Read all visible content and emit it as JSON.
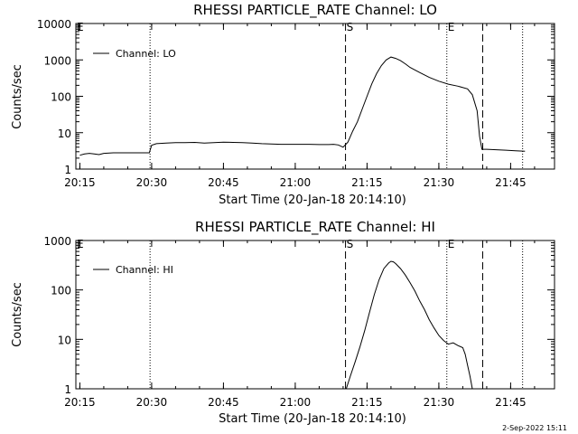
{
  "footer_date": "2-Sep-2022 15:11",
  "chart_data": [
    {
      "type": "line",
      "title": "RHESSI PARTICLE_RATE Channel: LO",
      "xlabel": "Start Time (20-Jan-18 20:14:10)",
      "ylabel": "Counts/sec",
      "y_scale": "log",
      "ylim": [
        1,
        10000
      ],
      "yticks": [
        1,
        10,
        100,
        1000,
        10000
      ],
      "ytick_labels": [
        "1",
        "10",
        "100",
        "1000",
        "10000"
      ],
      "xlim": [
        "20:14:10",
        "21:54:10"
      ],
      "xticks": [
        "20:15",
        "20:30",
        "20:45",
        "21:00",
        "21:15",
        "21:30",
        "21:45"
      ],
      "legend": {
        "position": "top-left",
        "label": "Channel: LO"
      },
      "markers": [
        {
          "time": "20:14:10",
          "label": "E",
          "style": "none"
        },
        {
          "time": "20:29:40",
          "label": "",
          "style": "dotted"
        },
        {
          "time": "21:10:30",
          "label": "S",
          "style": "dashed"
        },
        {
          "time": "21:31:40",
          "label": "E",
          "style": "dotted"
        },
        {
          "time": "21:39:10",
          "label": "",
          "style": "dashed"
        },
        {
          "time": "21:47:30",
          "label": "",
          "style": "dotted"
        }
      ],
      "series": [
        {
          "name": "Channel: LO",
          "x": [
            "20:15:00",
            "20:16:00",
            "20:17:00",
            "20:18:00",
            "20:19:00",
            "20:20:00",
            "20:22:00",
            "20:24:00",
            "20:26:00",
            "20:28:00",
            "20:29:30",
            "20:30:00",
            "20:31:00",
            "20:33:00",
            "20:35:00",
            "20:37:00",
            "20:39:00",
            "20:41:00",
            "20:43:00",
            "20:45:00",
            "20:47:00",
            "20:49:00",
            "20:51:00",
            "20:53:00",
            "20:55:00",
            "20:57:00",
            "20:59:00",
            "21:01:00",
            "21:03:00",
            "21:05:00",
            "21:07:00",
            "21:08:00",
            "21:09:00",
            "21:10:00",
            "21:11:00",
            "21:12:00",
            "21:13:00",
            "21:14:00",
            "21:15:00",
            "21:16:00",
            "21:17:00",
            "21:18:00",
            "21:19:00",
            "21:20:00",
            "21:21:00",
            "21:22:00",
            "21:23:00",
            "21:24:00",
            "21:26:00",
            "21:28:00",
            "21:30:00",
            "21:32:00",
            "21:34:00",
            "21:36:00",
            "21:37:00",
            "21:38:00",
            "21:38:30",
            "21:39:00",
            "21:40:00",
            "21:42:00",
            "21:44:00",
            "21:46:00",
            "21:48:00"
          ],
          "y": [
            2.4,
            2.6,
            2.7,
            2.6,
            2.5,
            2.7,
            2.8,
            2.8,
            2.8,
            2.8,
            2.8,
            4.5,
            5.0,
            5.2,
            5.3,
            5.3,
            5.4,
            5.2,
            5.3,
            5.5,
            5.4,
            5.3,
            5.2,
            5.0,
            4.9,
            4.8,
            4.8,
            4.8,
            4.8,
            4.7,
            4.7,
            4.8,
            4.6,
            4.0,
            5.5,
            11,
            20,
            45,
            100,
            220,
            420,
            700,
            1000,
            1200,
            1100,
            950,
            780,
            620,
            450,
            330,
            260,
            215,
            190,
            160,
            110,
            40,
            8,
            3.5,
            3.5,
            3.4,
            3.3,
            3.2,
            3.1
          ]
        }
      ]
    },
    {
      "type": "line",
      "title": "RHESSI PARTICLE_RATE Channel: HI",
      "xlabel": "Start Time (20-Jan-18 20:14:10)",
      "ylabel": "Counts/sec",
      "y_scale": "log",
      "ylim": [
        1,
        1000
      ],
      "yticks": [
        1,
        10,
        100,
        1000
      ],
      "ytick_labels": [
        "1",
        "10",
        "100",
        "1000"
      ],
      "xlim": [
        "20:14:10",
        "21:54:10"
      ],
      "xticks": [
        "20:15",
        "20:30",
        "20:45",
        "21:00",
        "21:15",
        "21:30",
        "21:45"
      ],
      "legend": {
        "position": "top-left",
        "label": "Channel: HI"
      },
      "markers": [
        {
          "time": "20:14:10",
          "label": "E",
          "style": "none"
        },
        {
          "time": "20:29:40",
          "label": "",
          "style": "dotted"
        },
        {
          "time": "21:10:30",
          "label": "S",
          "style": "dashed"
        },
        {
          "time": "21:31:40",
          "label": "E",
          "style": "dotted"
        },
        {
          "time": "21:39:10",
          "label": "",
          "style": "dashed"
        },
        {
          "time": "21:47:30",
          "label": "",
          "style": "dotted"
        }
      ],
      "series": [
        {
          "name": "Channel: HI",
          "x": [
            "21:10:40",
            "21:11:30",
            "21:12:30",
            "21:13:30",
            "21:14:30",
            "21:15:30",
            "21:16:30",
            "21:17:30",
            "21:18:30",
            "21:19:30",
            "21:20:00",
            "21:20:30",
            "21:21:00",
            "21:22:00",
            "21:23:00",
            "21:24:00",
            "21:25:00",
            "21:26:00",
            "21:27:00",
            "21:28:00",
            "21:29:00",
            "21:30:00",
            "21:31:00",
            "21:32:00",
            "21:33:00",
            "21:34:00",
            "21:35:00",
            "21:35:30",
            "21:36:00",
            "21:36:30",
            "21:37:00"
          ],
          "y": [
            1.0,
            1.8,
            3.5,
            7,
            15,
            35,
            80,
            160,
            270,
            350,
            380,
            370,
            340,
            270,
            200,
            140,
            95,
            60,
            40,
            25,
            17,
            12,
            9.5,
            8,
            8.5,
            7.5,
            6.8,
            5.0,
            3.0,
            1.8,
            1.0
          ]
        }
      ]
    }
  ]
}
